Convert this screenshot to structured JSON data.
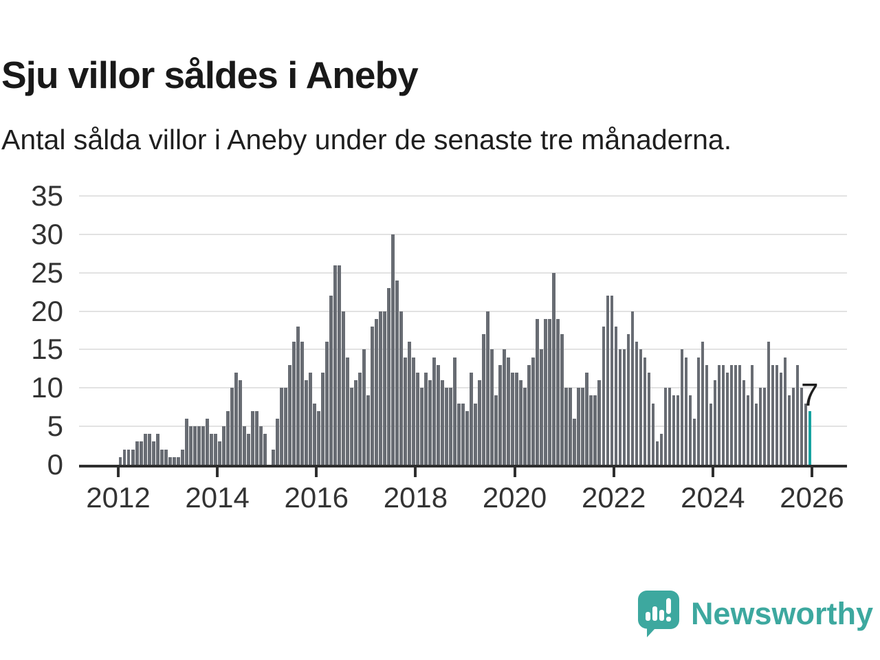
{
  "title": "Sju villor såldes i Aneby",
  "subtitle": "Antal sålda villor i Aneby under de senaste tre månaderna.",
  "chart_data": {
    "type": "bar",
    "title": "Sju villor såldes i Aneby",
    "xlabel": "",
    "ylabel": "",
    "x_period_start": "2012-01",
    "x_period_end": "2025-12",
    "x_tick_labels": [
      "2012",
      "2014",
      "2016",
      "2018",
      "2020",
      "2022",
      "2024",
      "2026"
    ],
    "y_tick_labels": [
      "0",
      "5",
      "10",
      "15",
      "20",
      "25",
      "30",
      "35"
    ],
    "ylim": [
      0,
      35
    ],
    "grid": "horizontal",
    "legend": "none",
    "bar_color": "#686c73",
    "highlight_color": "#16a2a0",
    "highlight_index": 167,
    "highlight_label": "7",
    "values_by_year": {
      "2012": [
        1,
        2,
        2,
        2,
        3,
        3,
        4,
        4,
        3,
        4,
        2,
        2
      ],
      "2013": [
        1,
        1,
        1,
        2,
        6,
        5,
        5,
        5,
        5,
        6,
        4,
        4
      ],
      "2014": [
        3,
        5,
        7,
        10,
        12,
        11,
        5,
        4,
        7,
        7,
        5,
        4
      ],
      "2015": [
        0,
        2,
        6,
        10,
        10,
        13,
        16,
        18,
        16,
        11,
        12,
        8
      ],
      "2016": [
        7,
        12,
        16,
        22,
        26,
        26,
        20,
        14,
        10,
        11,
        12,
        15
      ],
      "2017": [
        9,
        18,
        19,
        20,
        20,
        23,
        30,
        24,
        20,
        14,
        16,
        14
      ],
      "2018": [
        12,
        10,
        12,
        11,
        14,
        13,
        11,
        10,
        10,
        14,
        8,
        8
      ],
      "2019": [
        7,
        12,
        8,
        11,
        17,
        20,
        15,
        9,
        13,
        15,
        14,
        12
      ],
      "2020": [
        12,
        11,
        10,
        13,
        14,
        19,
        15,
        19,
        19,
        25,
        19,
        17
      ],
      "2021": [
        10,
        10,
        6,
        10,
        10,
        12,
        9,
        9,
        11,
        18,
        22,
        22
      ],
      "2022": [
        18,
        15,
        15,
        17,
        20,
        16,
        15,
        14,
        12,
        8,
        3,
        4
      ],
      "2023": [
        10,
        10,
        9,
        9,
        15,
        14,
        9,
        6,
        14,
        16,
        13,
        8
      ],
      "2024": [
        11,
        13,
        13,
        12,
        13,
        13,
        13,
        11,
        9,
        13,
        8,
        10
      ],
      "2025": [
        10,
        16,
        13,
        13,
        12,
        14,
        9,
        10,
        13,
        10,
        8,
        7
      ]
    }
  },
  "branding": {
    "logo_text": "Newsworthy",
    "logo_color": "#3da89f",
    "logo_icon": "newsworthy-speech-bubble-chart-icon"
  }
}
